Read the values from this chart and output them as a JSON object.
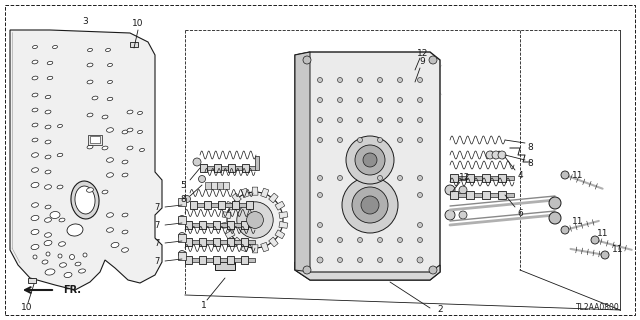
{
  "bg_color": "#ffffff",
  "line_color": "#1a1a1a",
  "diagram_code": "TL2AA0800",
  "fig_w": 6.4,
  "fig_h": 3.2,
  "dpi": 100
}
